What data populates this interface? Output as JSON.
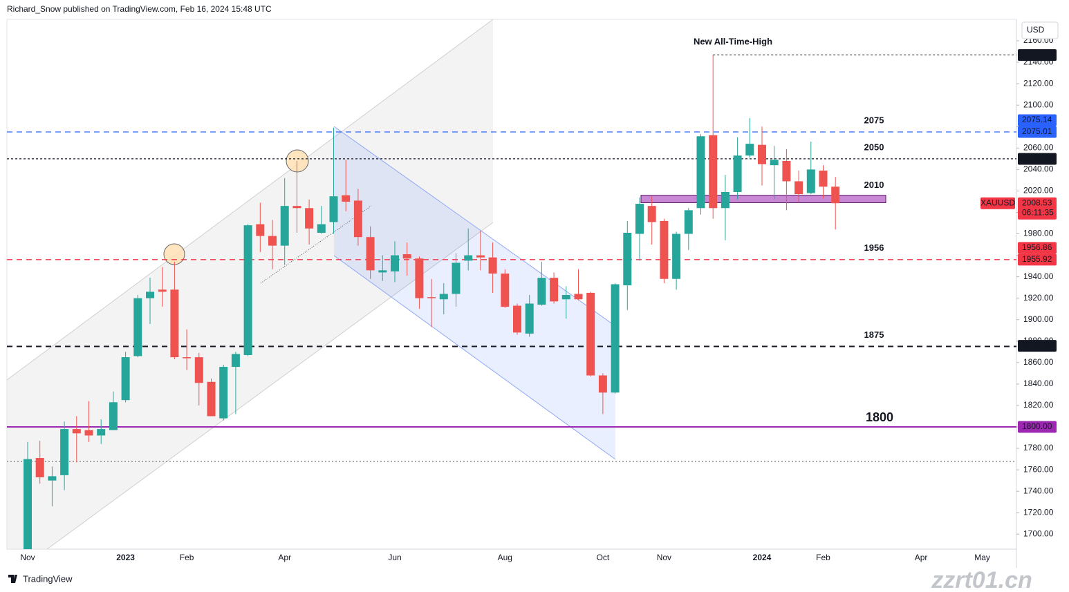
{
  "header": "Richard_Snow published on TradingView.com, Feb 16, 2024 15:48 UTC",
  "footer_brand": "TradingView",
  "watermark": "zzrt01.cn",
  "chart_data": {
    "type": "candlestick",
    "symbol": "XAUUSD",
    "currency": "USD",
    "countdown": "06:11:35",
    "annotation": "New All-Time-High",
    "up_color": "#26a69a",
    "down_color": "#ef5350",
    "categories": [
      "Nov",
      null,
      null,
      null,
      null,
      null,
      null,
      null,
      "2023",
      null,
      null,
      null,
      null,
      "Feb",
      null,
      null,
      null,
      null,
      null,
      null,
      null,
      "Apr",
      null,
      null,
      null,
      null,
      null,
      null,
      null,
      null,
      "Jun",
      null,
      null,
      null,
      null,
      null,
      null,
      null,
      null,
      "Aug",
      null,
      null,
      null,
      null,
      null,
      null,
      null,
      "Oct",
      null,
      null,
      null,
      null,
      "Nov",
      null,
      null,
      null,
      null,
      null,
      null,
      null,
      "2024",
      null,
      null,
      null,
      null,
      "Feb",
      null,
      null,
      null,
      null,
      null,
      null,
      null,
      "Apr",
      null,
      null,
      null,
      null,
      "May"
    ],
    "open": [
      1676,
      1771,
      1750,
      1755,
      1798,
      1797,
      1792,
      1797,
      1825,
      1866,
      1920,
      1928,
      1928,
      1865,
      1865,
      1842,
      1808,
      1856,
      1867,
      1989,
      1978,
      1969,
      2006,
      2004,
      1981,
      1991,
      2016,
      2011,
      1977,
      1944,
      1945,
      1961,
      1957,
      1921,
      1919,
      1924,
      1955,
      1960,
      1958,
      1943,
      1913,
      1887,
      1914,
      1939,
      1919,
      1924,
      1925,
      1848,
      1832,
      1932,
      1980,
      2006,
      1992,
      1938,
      1980,
      2004,
      2072,
      2004,
      2019,
      2053,
      2063,
      2044,
      2048,
      2029,
      2018,
      2039,
      2024,
      null,
      null,
      null,
      null,
      null,
      null,
      null,
      null,
      null,
      null,
      null,
      null
    ],
    "high": [
      1786,
      1787,
      1763,
      1805,
      1810,
      1824,
      1807,
      1833,
      1870,
      1923,
      1939,
      1949,
      1954,
      1891,
      1869,
      1845,
      1858,
      1870,
      1989,
      2009,
      1993,
      2032,
      2048,
      2012,
      2006,
      2079,
      2049,
      2022,
      1987,
      1960,
      1973,
      1972,
      1959,
      1938,
      1934,
      1962,
      1985,
      1983,
      1972,
      1947,
      1915,
      1923,
      1954,
      1944,
      1931,
      1947,
      1926,
      1850,
      1934,
      1992,
      2014,
      2015,
      1994,
      1982,
      2004,
      2073,
      2146.79,
      2035,
      2070,
      2088,
      2080,
      2062,
      2059,
      2039,
      2066,
      2044,
      2033,
      null,
      null,
      null,
      null,
      null,
      null,
      null,
      null,
      null,
      null,
      null,
      null
    ],
    "low": [
      1666,
      1747,
      1726,
      1741,
      1767,
      1786,
      1784,
      1797,
      1823,
      1865,
      1896,
      1912,
      1863,
      1853,
      1820,
      1810,
      1806,
      1812,
      1866,
      1963,
      1947,
      1951,
      1981,
      1970,
      1980,
      1980,
      2001,
      1969,
      1938,
      1936,
      1935,
      1941,
      1910,
      1893,
      1905,
      1912,
      1946,
      1946,
      1925,
      1911,
      1886,
      1884,
      1913,
      1915,
      1901,
      1918,
      1847,
      1812,
      1831,
      1909,
      1955,
      1970,
      1934,
      1928,
      1965,
      1998,
      1994,
      1974,
      2012,
      2051,
      2025,
      2012,
      2002,
      2009,
      2017,
      2013,
      1984,
      null,
      null,
      null,
      null,
      null,
      null,
      null,
      null,
      null,
      null,
      null,
      null
    ],
    "close": [
      1770,
      1753,
      1754,
      1798,
      1794,
      1792,
      1798,
      1823,
      1865,
      1920,
      1926,
      1926,
      1865,
      1864,
      1841,
      1810,
      1856,
      1868,
      1988,
      1978,
      1969,
      2006,
      2004,
      1985,
      1989,
      2015,
      2010,
      1977,
      1946,
      1946,
      1960,
      1957,
      1920,
      1920,
      1924,
      1953,
      1960,
      1958,
      1943,
      1912,
      1888,
      1915,
      1939,
      1917,
      1923,
      1919,
      1848,
      1832,
      1933,
      1981,
      2008,
      1991,
      1938,
      1980,
      2002,
      2071,
      2004,
      2019,
      2053,
      2064,
      2045,
      2049,
      2029,
      2017,
      2040,
      2024,
      2008.53,
      null,
      null,
      null,
      null,
      null,
      null,
      null,
      null,
      null,
      null,
      null,
      null
    ],
    "ylim": [
      1686,
      2180
    ],
    "yticks": [
      {
        "value": 1700,
        "label": "1700.00"
      },
      {
        "value": 1720,
        "label": "1720.00"
      },
      {
        "value": 1740,
        "label": "1740.00"
      },
      {
        "value": 1760,
        "label": "1760.00"
      },
      {
        "value": 1780,
        "label": "1780.00"
      },
      {
        "value": 1800,
        "label": "1800.00"
      },
      {
        "value": 1820,
        "label": "1820.00"
      },
      {
        "value": 1840,
        "label": "1840.00"
      },
      {
        "value": 1860,
        "label": "1860.00"
      },
      {
        "value": 1880,
        "label": "1880.00"
      },
      {
        "value": 1900,
        "label": "1900.00"
      },
      {
        "value": 1920,
        "label": "1920.00"
      },
      {
        "value": 1940,
        "label": "1940.00"
      },
      {
        "value": 1960,
        "label": "1960.00"
      },
      {
        "value": 1980,
        "label": "1980.00"
      },
      {
        "value": 2000,
        "label": "2000.00"
      },
      {
        "value": 2020,
        "label": "2020.00"
      },
      {
        "value": 2040,
        "label": "2040.00"
      },
      {
        "value": 2060,
        "label": "2060.00"
      },
      {
        "value": 2080,
        "label": "2080.00"
      },
      {
        "value": 2100,
        "label": "2100.00"
      },
      {
        "value": 2120,
        "label": "2120.00"
      },
      {
        "value": 2140,
        "label": "2140.00"
      },
      {
        "value": 2160,
        "label": "2160.00"
      }
    ],
    "levels": [
      {
        "value": 2075,
        "color": "#2962ff",
        "style": "dashed"
      },
      {
        "value": 2050,
        "color": "#131722",
        "style": "dotted"
      },
      {
        "value": 2010,
        "color": "#9c27b0",
        "style": "zone",
        "range": [
          2009,
          2016
        ]
      },
      {
        "value": 1956,
        "color": "#f23645",
        "style": "dashed"
      },
      {
        "value": 1875,
        "color": "#131722",
        "style": "bold-dashed"
      },
      {
        "value": 1800,
        "color": "#9c27b0",
        "style": "solid"
      }
    ],
    "price_tags": [
      {
        "price": 2146.79,
        "color": "#131722"
      },
      {
        "price": 2075.14,
        "color": "#2962ff"
      },
      {
        "price": 2075.01,
        "color": "#2962ff"
      },
      {
        "price": {
          "value": 2049.9,
          "label": "2049.90"
        },
        "color": "#131722"
      },
      {
        "price": 2008.53,
        "color": "#f23645"
      },
      {
        "price": 1956.86,
        "color": "#f23645"
      },
      {
        "price": 1955.92,
        "color": "#f23645"
      },
      {
        "price": 1875.61,
        "color": "#131722"
      },
      {
        "price": {
          "value": 1800,
          "label": "1800.00"
        },
        "color": "#9c27b0"
      }
    ]
  }
}
